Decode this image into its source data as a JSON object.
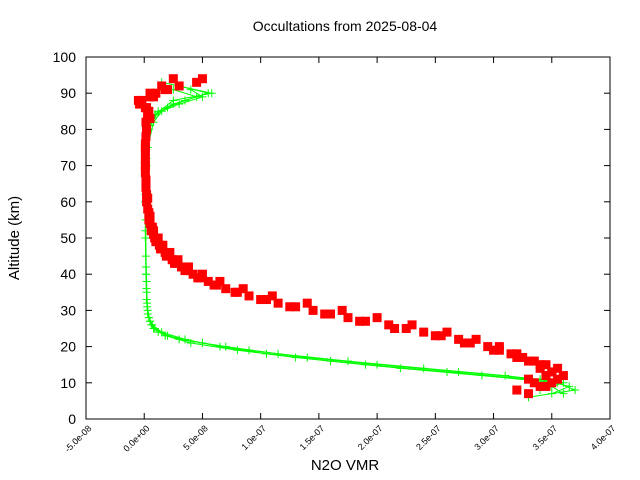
{
  "chart_data": {
    "type": "scatter",
    "title": "Occultations from 2025-08-04",
    "xlabel": "N2O VMR",
    "ylabel": "Altitude (km)",
    "xlim": [
      -5e-08,
      4e-07
    ],
    "ylim": [
      0,
      100
    ],
    "xticks": [
      "-5.0e-08",
      "0.0e+00",
      "5.0e-08",
      "1.0e-07",
      "1.5e-07",
      "2.0e-07",
      "2.5e-07",
      "3.0e-07",
      "3.5e-07",
      "4.0e-07"
    ],
    "xtick_values": [
      -5e-08,
      0,
      5e-08,
      1e-07,
      1.5e-07,
      2e-07,
      2.5e-07,
      3e-07,
      3.5e-07,
      4e-07
    ],
    "yticks": [
      "0",
      "10",
      "20",
      "30",
      "40",
      "50",
      "60",
      "70",
      "80",
      "90",
      "100"
    ],
    "ytick_values": [
      0,
      10,
      20,
      30,
      40,
      50,
      60,
      70,
      80,
      90,
      100
    ],
    "grid": false,
    "legend": "none",
    "series": [
      {
        "color": "#00ff00",
        "marker": "plus",
        "connected": true,
        "profiles": [
          {
            "alt": [
              7,
              9,
              11,
              13,
              15,
              17,
              19,
              21,
              23,
              25,
              27,
              30,
              35,
              40,
              50,
              60,
              70,
              80,
              84,
              86,
              88,
              90,
              92
            ],
            "vmr": [
              3.5e-07,
              3.65e-07,
              3.4e-07,
              2.7e-07,
              2e-07,
              1.4e-07,
              9e-08,
              5e-08,
              2e-08,
              9e-09,
              5e-09,
              3e-09,
              2e-09,
              1.5e-09,
              1e-09,
              1e-09,
              2e-09,
              4e-09,
              1e-08,
              2e-08,
              3.5e-08,
              5.5e-08,
              3e-08
            ]
          },
          {
            "alt": [
              6,
              8,
              10,
              12,
              14,
              16,
              18,
              20,
              22,
              24,
              26,
              28,
              32,
              38,
              45,
              55,
              65,
              75,
              82,
              85,
              87,
              89,
              91
            ],
            "vmr": [
              3.3e-07,
              3.7e-07,
              3.55e-07,
              2.9e-07,
              2.2e-07,
              1.6e-07,
              1.05e-07,
              6.5e-08,
              3.5e-08,
              1.5e-08,
              7e-09,
              4e-09,
              2.5e-09,
              2e-09,
              1.5e-09,
              1.2e-09,
              1.5e-09,
              3e-09,
              8e-09,
              1.5e-08,
              3e-08,
              5e-08,
              4e-08
            ]
          },
          {
            "alt": [
              7,
              9,
              11,
              13,
              15,
              17,
              19,
              21,
              23,
              25,
              27,
              29,
              33,
              40,
              50,
              60,
              70,
              80,
              85,
              87,
              89,
              91
            ],
            "vmr": [
              3.6e-07,
              3.5e-07,
              3.3e-07,
              2.6e-07,
              1.9e-07,
              1.3e-07,
              8e-08,
              4e-08,
              1.8e-08,
              8e-09,
              5e-09,
              3e-09,
              2e-09,
              1.5e-09,
              1.2e-09,
              1e-09,
              1.5e-09,
              3e-09,
              1.2e-08,
              2.5e-08,
              4.5e-08,
              2.5e-08
            ]
          },
          {
            "alt": [
              8,
              10,
              12,
              14,
              16,
              18,
              20,
              22,
              24,
              26,
              28,
              31,
              36,
              42,
              52,
              62,
              72,
              81,
              84,
              88,
              90,
              93
            ],
            "vmr": [
              3.4e-07,
              3.6e-07,
              3.1e-07,
              2.4e-07,
              1.75e-07,
              1.15e-07,
              7e-08,
              3e-08,
              1.2e-08,
              6e-09,
              4e-09,
              2.5e-09,
              2e-09,
              1.5e-09,
              1e-09,
              1e-09,
              2e-09,
              4e-09,
              9e-09,
              2.5e-08,
              5.8e-08,
              1.5e-08
            ]
          }
        ]
      },
      {
        "color": "#ff0000",
        "marker": "square",
        "connected": false,
        "profiles": [
          {
            "alt": [
              8,
              10,
              12,
              14,
              16,
              18,
              20,
              22,
              24,
              26,
              28,
              30,
              32,
              34,
              36,
              38,
              40,
              42,
              44,
              46,
              48,
              50,
              52,
              55,
              60,
              65,
              70,
              75,
              80,
              84,
              86,
              88,
              90,
              92,
              94
            ],
            "vmr": [
              3.2e-07,
              3.35e-07,
              3.45e-07,
              3.4e-07,
              3.3e-07,
              3.15e-07,
              2.95e-07,
              2.7e-07,
              2.4e-07,
              2.1e-07,
              1.75e-07,
              1.45e-07,
              1.15e-07,
              9e-08,
              7e-08,
              5.5e-08,
              4.2e-08,
              3.2e-08,
              2.4e-08,
              1.8e-08,
              1.3e-08,
              9e-09,
              6e-09,
              4e-09,
              2e-09,
              1.5e-09,
              1e-09,
              1e-09,
              2e-09,
              3e-09,
              1e-09,
              -5e-09,
              5e-09,
              1.5e-08,
              2.5e-08
            ]
          },
          {
            "alt": [
              9,
              11,
              13,
              15,
              17,
              19,
              21,
              23,
              25,
              27,
              29,
              31,
              33,
              35,
              37,
              39,
              41,
              43,
              45,
              47,
              49,
              51,
              54,
              58,
              64,
              70,
              76,
              82,
              85,
              87,
              89,
              91,
              93
            ],
            "vmr": [
              3.4e-07,
              3.55e-07,
              3.5e-07,
              3.45e-07,
              3.25e-07,
              3.05e-07,
              2.8e-07,
              2.55e-07,
              2.25e-07,
              1.9e-07,
              1.6e-07,
              1.3e-07,
              1.05e-07,
              8e-08,
              6.2e-08,
              4.8e-08,
              3.7e-08,
              2.8e-08,
              2.1e-08,
              1.5e-08,
              1.1e-08,
              8e-09,
              5e-09,
              3e-09,
              1.5e-09,
              1e-09,
              1e-09,
              1.5e-09,
              4e-09,
              -3e-09,
              8e-09,
              2e-08,
              4.5e-08
            ]
          },
          {
            "alt": [
              7,
              9,
              11,
              13,
              15,
              17,
              19,
              21,
              23,
              25,
              27,
              29,
              31,
              33,
              35,
              37,
              39,
              41,
              43,
              45,
              47,
              49,
              53,
              57,
              62,
              68,
              74,
              80,
              83,
              86,
              88,
              90,
              92
            ],
            "vmr": [
              3.3e-07,
              3.45e-07,
              3.3e-07,
              3.5e-07,
              3.4e-07,
              3.2e-07,
              3e-07,
              2.75e-07,
              2.5e-07,
              2.15e-07,
              1.85e-07,
              1.55e-07,
              1.25e-07,
              1e-07,
              7.8e-08,
              6e-08,
              4.6e-08,
              3.5e-08,
              2.6e-08,
              1.9e-08,
              1.4e-08,
              1e-08,
              7e-09,
              4e-09,
              2e-09,
              1e-09,
              1e-09,
              2e-09,
              5e-09,
              2e-09,
              -2e-09,
              1e-08,
              3e-08
            ]
          },
          {
            "alt": [
              10,
              12,
              14,
              16,
              18,
              20,
              22,
              24,
              26,
              28,
              30,
              32,
              34,
              36,
              38,
              40,
              42,
              44,
              46,
              48,
              50,
              52,
              56,
              61,
              66,
              72,
              78,
              84,
              87,
              89,
              91,
              94
            ],
            "vmr": [
              3.5e-07,
              3.6e-07,
              3.55e-07,
              3.35e-07,
              3.2e-07,
              3.05e-07,
              2.85e-07,
              2.6e-07,
              2.3e-07,
              2e-07,
              1.7e-07,
              1.4e-07,
              1.1e-07,
              8.5e-08,
              6.5e-08,
              5e-08,
              3.8e-08,
              2.9e-08,
              2.2e-08,
              1.6e-08,
              1.2e-08,
              8e-09,
              5e-09,
              3e-09,
              1.5e-09,
              1e-09,
              1.5e-09,
              3e-09,
              -4e-09,
              5e-09,
              1.8e-08,
              5e-08
            ]
          }
        ]
      }
    ]
  }
}
